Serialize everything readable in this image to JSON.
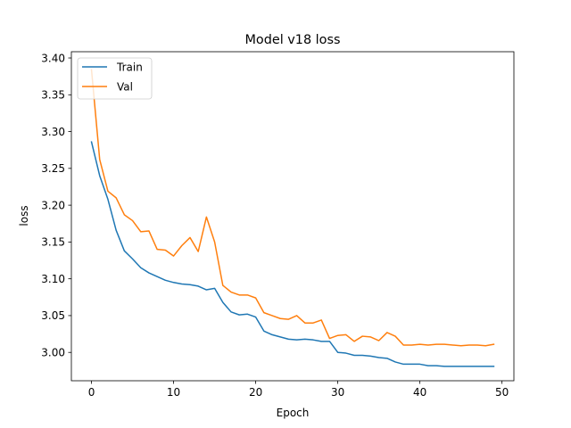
{
  "chart_data": {
    "type": "line",
    "title": "Model v18 loss",
    "xlabel": "Epoch",
    "ylabel": "loss",
    "xlim": [
      -2.45,
      51.45
    ],
    "ylim": [
      2.9615,
      3.4085
    ],
    "xticks": [
      0,
      10,
      20,
      30,
      40,
      50
    ],
    "yticks": [
      3.0,
      3.05,
      3.1,
      3.15,
      3.2,
      3.25,
      3.3,
      3.35,
      3.4
    ],
    "xtick_labels": [
      "0",
      "10",
      "20",
      "30",
      "40",
      "50"
    ],
    "ytick_labels": [
      "3.00",
      "3.05",
      "3.10",
      "3.15",
      "3.20",
      "3.25",
      "3.30",
      "3.35",
      "3.40"
    ],
    "legend_position": "upper-left",
    "grid": false,
    "x": [
      0,
      1,
      2,
      3,
      4,
      5,
      6,
      7,
      8,
      9,
      10,
      11,
      12,
      13,
      14,
      15,
      16,
      17,
      18,
      19,
      20,
      21,
      22,
      23,
      24,
      25,
      26,
      27,
      28,
      29,
      30,
      31,
      32,
      33,
      34,
      35,
      36,
      37,
      38,
      39,
      40,
      41,
      42,
      43,
      44,
      45,
      46,
      47,
      48,
      49
    ],
    "series": [
      {
        "name": "Train",
        "color": "#1f77b4",
        "values": [
          3.286,
          3.24,
          3.208,
          3.166,
          3.138,
          3.127,
          3.115,
          3.108,
          3.103,
          3.098,
          3.095,
          3.093,
          3.092,
          3.09,
          3.085,
          3.087,
          3.068,
          3.055,
          3.051,
          3.052,
          3.048,
          3.029,
          3.024,
          3.021,
          3.018,
          3.017,
          3.018,
          3.017,
          3.015,
          3.015,
          3.0,
          2.999,
          2.996,
          2.996,
          2.995,
          2.993,
          2.992,
          2.987,
          2.984,
          2.984,
          2.984,
          2.982,
          2.982,
          2.981,
          2.981,
          2.981,
          2.981,
          2.981,
          2.981,
          2.981
        ]
      },
      {
        "name": "Val",
        "color": "#ff7f0e",
        "values": [
          3.384,
          3.262,
          3.219,
          3.21,
          3.187,
          3.179,
          3.164,
          3.165,
          3.14,
          3.139,
          3.131,
          3.145,
          3.156,
          3.137,
          3.184,
          3.15,
          3.091,
          3.082,
          3.078,
          3.078,
          3.074,
          3.054,
          3.05,
          3.046,
          3.045,
          3.05,
          3.04,
          3.04,
          3.044,
          3.019,
          3.023,
          3.024,
          3.015,
          3.022,
          3.021,
          3.016,
          3.027,
          3.022,
          3.01,
          3.01,
          3.011,
          3.01,
          3.011,
          3.011,
          3.01,
          3.009,
          3.01,
          3.01,
          3.009,
          3.011
        ]
      }
    ]
  }
}
